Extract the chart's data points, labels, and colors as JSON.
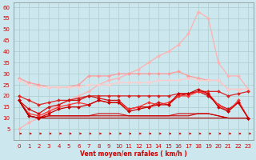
{
  "background_color": "#cce8ee",
  "grid_color": "#aacccc",
  "xlabel": "Vent moyen/en rafales ( km/h )",
  "xlabel_color": "#cc0000",
  "tick_color": "#cc0000",
  "xlim": [
    -0.5,
    23.5
  ],
  "ylim": [
    0,
    62
  ],
  "yticks": [
    5,
    10,
    15,
    20,
    25,
    30,
    35,
    40,
    45,
    50,
    55,
    60
  ],
  "xticks": [
    0,
    1,
    2,
    3,
    4,
    5,
    6,
    7,
    8,
    9,
    10,
    11,
    12,
    13,
    14,
    15,
    16,
    17,
    18,
    19,
    20,
    21,
    22,
    23
  ],
  "series": [
    {
      "color": "#ffb0b0",
      "lw": 0.9,
      "marker": "D",
      "ms": 2.0,
      "y": [
        5,
        8,
        10,
        13,
        16,
        18,
        20,
        22,
        25,
        27,
        28,
        30,
        32,
        35,
        38,
        40,
        43,
        48,
        58,
        55,
        35,
        29,
        29,
        23
      ]
    },
    {
      "color": "#ff9999",
      "lw": 0.9,
      "marker": "D",
      "ms": 2.0,
      "y": [
        28,
        26,
        25,
        24,
        24,
        24,
        25,
        29,
        29,
        29,
        30,
        30,
        30,
        30,
        30,
        30,
        31,
        29,
        28,
        27,
        27,
        23,
        23,
        23
      ]
    },
    {
      "color": "#ffcccc",
      "lw": 0.9,
      "marker": "D",
      "ms": 2.0,
      "y": [
        27,
        25,
        24,
        24,
        24,
        24,
        24,
        25,
        25,
        25,
        26,
        26,
        26,
        26,
        27,
        27,
        27,
        28,
        27,
        27,
        27,
        23,
        23,
        23
      ]
    },
    {
      "color": "#dd2222",
      "lw": 0.9,
      "marker": "D",
      "ms": 2.0,
      "y": [
        20,
        18,
        16,
        17,
        18,
        18,
        19,
        20,
        20,
        20,
        20,
        20,
        20,
        20,
        20,
        20,
        21,
        21,
        22,
        22,
        22,
        20,
        21,
        22
      ]
    },
    {
      "color": "#cc1111",
      "lw": 0.9,
      "marker": "D",
      "ms": 2.0,
      "y": [
        18,
        14,
        12,
        15,
        16,
        18,
        18,
        20,
        19,
        18,
        18,
        14,
        15,
        15,
        17,
        16,
        20,
        21,
        22,
        20,
        16,
        14,
        17,
        10
      ]
    },
    {
      "color": "#ff3333",
      "lw": 0.9,
      "marker": "D",
      "ms": 2.0,
      "y": [
        18,
        12,
        11,
        13,
        15,
        16,
        17,
        16,
        18,
        17,
        17,
        14,
        15,
        17,
        16,
        17,
        20,
        20,
        22,
        21,
        16,
        13,
        18,
        10
      ]
    },
    {
      "color": "#cc0000",
      "lw": 0.9,
      "marker": "D",
      "ms": 2.0,
      "y": [
        18,
        11,
        10,
        12,
        14,
        15,
        15,
        16,
        18,
        17,
        17,
        13,
        14,
        15,
        16,
        16,
        21,
        21,
        23,
        21,
        15,
        13,
        17,
        10
      ]
    },
    {
      "color": "#cc0000",
      "lw": 0.8,
      "marker": null,
      "ms": 0,
      "y": [
        18,
        11,
        10,
        11,
        11,
        11,
        11,
        11,
        12,
        12,
        12,
        11,
        11,
        11,
        11,
        11,
        12,
        12,
        12,
        12,
        11,
        10,
        10,
        10
      ]
    },
    {
      "color": "#cc0000",
      "lw": 0.8,
      "marker": null,
      "ms": 0,
      "y": [
        18,
        11,
        10,
        11,
        11,
        11,
        11,
        11,
        11,
        11,
        11,
        11,
        11,
        11,
        11,
        11,
        11,
        11,
        12,
        12,
        11,
        10,
        10,
        10
      ]
    },
    {
      "color": "#aa0000",
      "lw": 0.8,
      "marker": null,
      "ms": 0,
      "y": [
        18,
        11,
        10,
        10,
        10,
        10,
        10,
        10,
        10,
        10,
        10,
        10,
        10,
        10,
        10,
        10,
        10,
        10,
        10,
        10,
        10,
        10,
        10,
        10
      ]
    }
  ]
}
